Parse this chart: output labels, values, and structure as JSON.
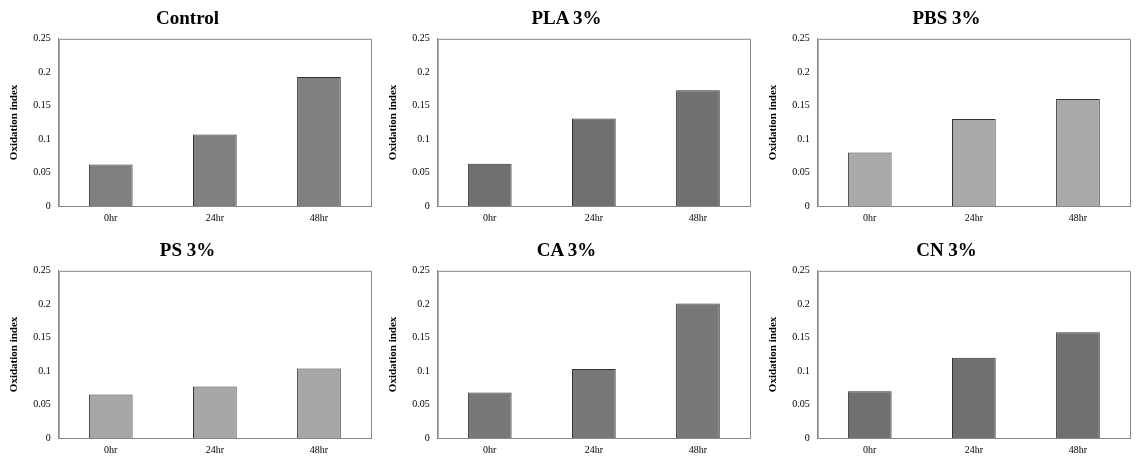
{
  "chart_data": [
    {
      "type": "bar",
      "title": "Control",
      "ylabel": "Oxidation index",
      "categories": [
        "0hr",
        "24hr",
        "48hr"
      ],
      "values": [
        0.062,
        0.107,
        0.193
      ],
      "color": "#808080",
      "ylim": [
        0,
        0.25
      ],
      "yticks": [
        0,
        0.05,
        0.1,
        0.15,
        0.2,
        0.25
      ],
      "grid": false,
      "legend": false
    },
    {
      "type": "bar",
      "title": "PLA 3%",
      "ylabel": "Oxidation index",
      "categories": [
        "0hr",
        "24hr",
        "48hr"
      ],
      "values": [
        0.063,
        0.131,
        0.173
      ],
      "color": "#707070",
      "ylim": [
        0,
        0.25
      ],
      "yticks": [
        0,
        0.05,
        0.1,
        0.15,
        0.2,
        0.25
      ],
      "grid": false,
      "legend": false
    },
    {
      "type": "bar",
      "title": "PBS 3%",
      "ylabel": "Oxidation index",
      "categories": [
        "0hr",
        "24hr",
        "48hr"
      ],
      "values": [
        0.08,
        0.13,
        0.16
      ],
      "color": "#a9a9a9",
      "ylim": [
        0,
        0.25
      ],
      "yticks": [
        0,
        0.05,
        0.1,
        0.15,
        0.2,
        0.25
      ],
      "grid": false,
      "legend": false
    },
    {
      "type": "bar",
      "title": "PS 3%",
      "ylabel": "Oxidation index",
      "categories": [
        "0hr",
        "24hr",
        "48hr"
      ],
      "values": [
        0.065,
        0.077,
        0.104
      ],
      "color": "#a6a6a6",
      "ylim": [
        0,
        0.25
      ],
      "yticks": [
        0,
        0.05,
        0.1,
        0.15,
        0.2,
        0.25
      ],
      "grid": false,
      "legend": false
    },
    {
      "type": "bar",
      "title": "CA 3%",
      "ylabel": "Oxidation index",
      "categories": [
        "0hr",
        "24hr",
        "48hr"
      ],
      "values": [
        0.068,
        0.103,
        0.201
      ],
      "color": "#787878",
      "ylim": [
        0,
        0.25
      ],
      "yticks": [
        0,
        0.05,
        0.1,
        0.15,
        0.2,
        0.25
      ],
      "grid": false,
      "legend": false
    },
    {
      "type": "bar",
      "title": "CN 3%",
      "ylabel": "Oxidation index",
      "categories": [
        "0hr",
        "24hr",
        "48hr"
      ],
      "values": [
        0.07,
        0.12,
        0.158
      ],
      "color": "#707070",
      "ylim": [
        0,
        0.25
      ],
      "yticks": [
        0,
        0.05,
        0.1,
        0.15,
        0.2,
        0.25
      ],
      "grid": false,
      "legend": false
    }
  ]
}
